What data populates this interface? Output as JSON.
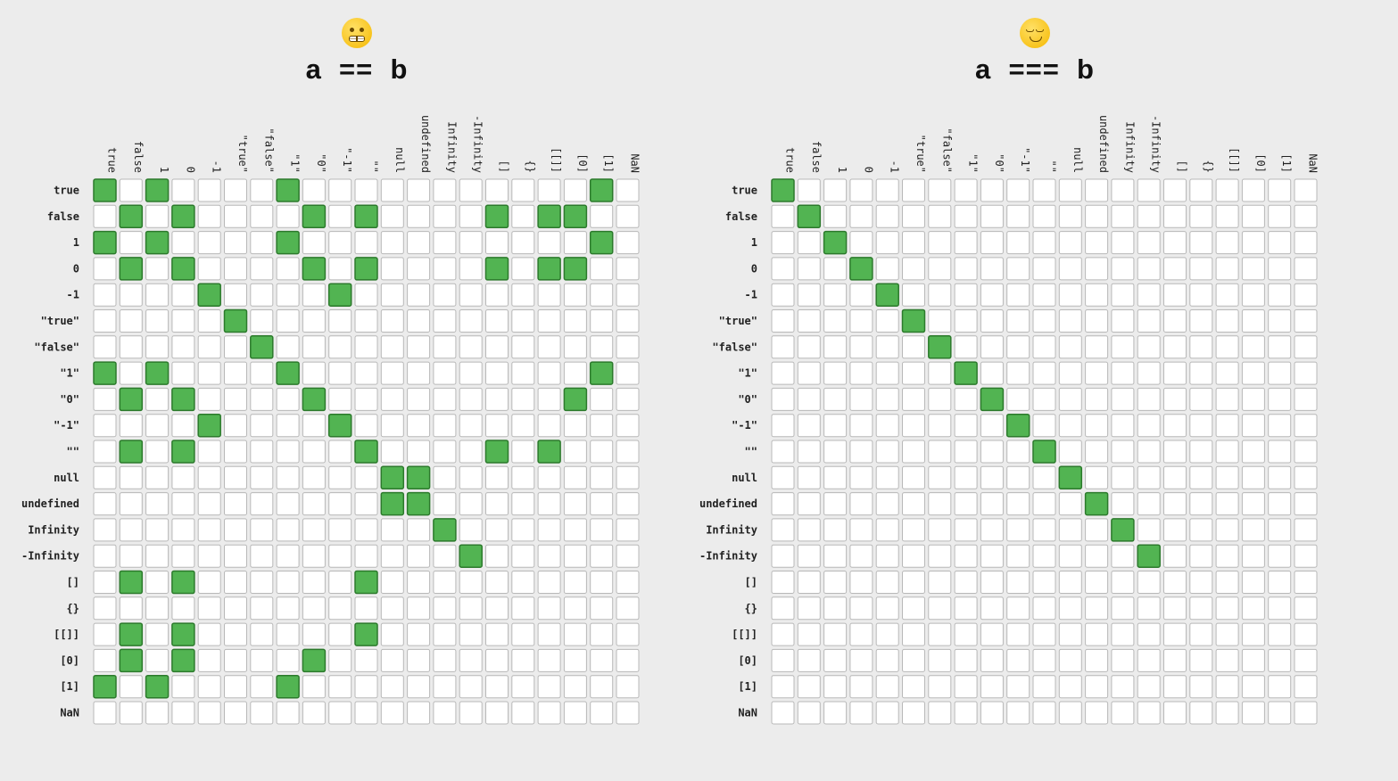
{
  "labels": [
    "true",
    "false",
    "1",
    "0",
    "-1",
    "\"true\"",
    "\"false\"",
    "\"1\"",
    "\"0\"",
    "\"-1\"",
    "\"\"",
    "null",
    "undefined",
    "Infinity",
    "-Infinity",
    "[]",
    "{}",
    "[[]]",
    "[0]",
    "[1]",
    "NaN"
  ],
  "colors": {
    "match": "#52b452",
    "match_border": "#2c7a2c",
    "empty": "#ffffff",
    "empty_border": "#b8b8b8"
  },
  "panels": [
    {
      "emoji": "grimacing-face-icon",
      "a": "a",
      "op": "==",
      "b": "b",
      "matches": [
        [
          0,
          0
        ],
        [
          0,
          2
        ],
        [
          0,
          7
        ],
        [
          0,
          19
        ],
        [
          1,
          1
        ],
        [
          1,
          3
        ],
        [
          1,
          8
        ],
        [
          1,
          10
        ],
        [
          1,
          15
        ],
        [
          1,
          17
        ],
        [
          1,
          18
        ],
        [
          2,
          0
        ],
        [
          2,
          2
        ],
        [
          2,
          7
        ],
        [
          2,
          19
        ],
        [
          3,
          1
        ],
        [
          3,
          3
        ],
        [
          3,
          8
        ],
        [
          3,
          10
        ],
        [
          3,
          15
        ],
        [
          3,
          17
        ],
        [
          3,
          18
        ],
        [
          4,
          4
        ],
        [
          4,
          9
        ],
        [
          5,
          5
        ],
        [
          6,
          6
        ],
        [
          7,
          0
        ],
        [
          7,
          2
        ],
        [
          7,
          7
        ],
        [
          7,
          19
        ],
        [
          8,
          1
        ],
        [
          8,
          3
        ],
        [
          8,
          8
        ],
        [
          8,
          18
        ],
        [
          9,
          4
        ],
        [
          9,
          9
        ],
        [
          10,
          1
        ],
        [
          10,
          3
        ],
        [
          10,
          10
        ],
        [
          10,
          15
        ],
        [
          10,
          17
        ],
        [
          11,
          11
        ],
        [
          11,
          12
        ],
        [
          12,
          11
        ],
        [
          12,
          12
        ],
        [
          13,
          13
        ],
        [
          14,
          14
        ],
        [
          15,
          1
        ],
        [
          15,
          3
        ],
        [
          15,
          10
        ],
        [
          17,
          1
        ],
        [
          17,
          3
        ],
        [
          17,
          10
        ],
        [
          18,
          1
        ],
        [
          18,
          3
        ],
        [
          18,
          8
        ],
        [
          19,
          0
        ],
        [
          19,
          2
        ],
        [
          19,
          7
        ]
      ]
    },
    {
      "emoji": "relieved-face-icon",
      "a": "a",
      "op": "===",
      "b": "b",
      "matches": [
        [
          0,
          0
        ],
        [
          1,
          1
        ],
        [
          2,
          2
        ],
        [
          3,
          3
        ],
        [
          4,
          4
        ],
        [
          5,
          5
        ],
        [
          6,
          6
        ],
        [
          7,
          7
        ],
        [
          8,
          8
        ],
        [
          9,
          9
        ],
        [
          10,
          10
        ],
        [
          11,
          11
        ],
        [
          12,
          12
        ],
        [
          13,
          13
        ],
        [
          14,
          14
        ]
      ]
    }
  ]
}
